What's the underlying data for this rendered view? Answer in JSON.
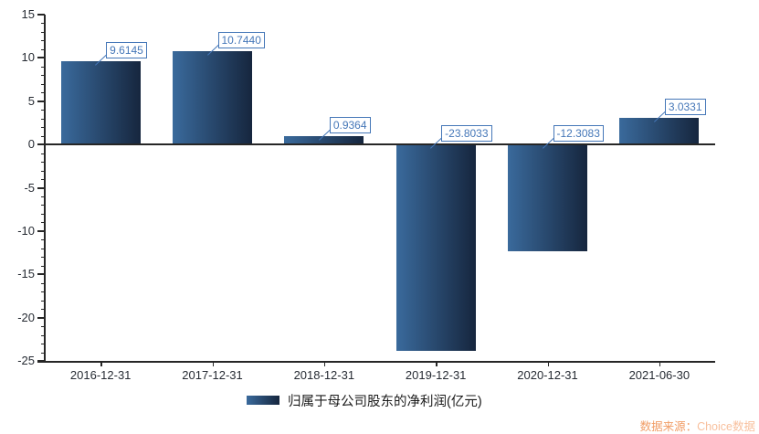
{
  "chart_data": {
    "type": "bar",
    "categories": [
      "2016-12-31",
      "2017-12-31",
      "2018-12-31",
      "2019-12-31",
      "2020-12-31",
      "2021-06-30"
    ],
    "values": [
      9.6145,
      10.744,
      0.9364,
      -23.8033,
      -12.3083,
      3.0331
    ],
    "value_labels": [
      "9.6145",
      "10.7440",
      "0.9364",
      "-23.8033",
      "-12.3083",
      "3.0331"
    ],
    "legend": "归属于母公司股东的净利润(亿元)",
    "ylim": [
      -25,
      15
    ],
    "y_major_step": 5,
    "y_minor_step": 1,
    "y_tick_labels": [
      "15",
      "10",
      "5",
      "0",
      "-5",
      "-10",
      "-15",
      "-20",
      "-25"
    ],
    "grid": false,
    "legend_position": "bottom-center",
    "colors": {
      "bar_gradient_left": "#3a6a9c",
      "bar_gradient_right": "#16263e",
      "value_label": "#4577b8",
      "axis": "#262626",
      "tick_label": "#262b33",
      "legend_text": "#1a1a1a"
    }
  },
  "source": {
    "prefix": "数据来源：",
    "brand": "Choice数据",
    "prefix_color": "#f19d66",
    "brand_color": "#f8c09e"
  }
}
